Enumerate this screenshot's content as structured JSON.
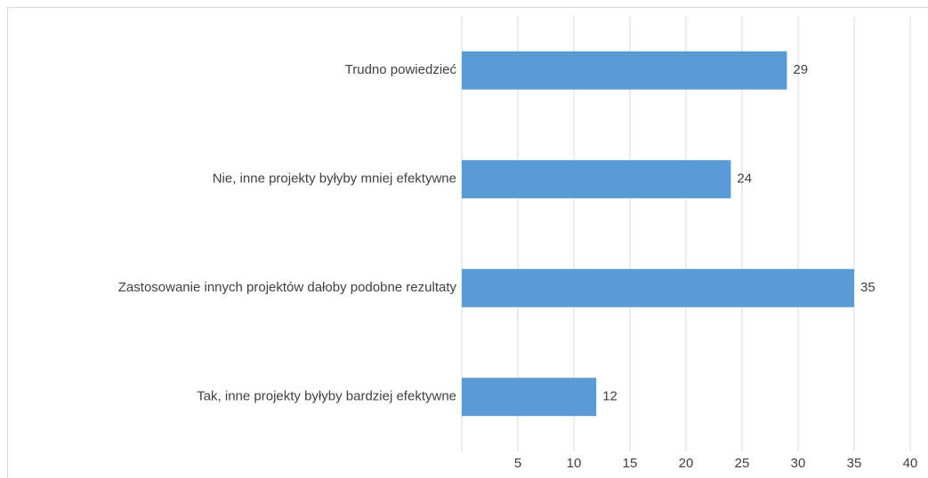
{
  "chart_data": {
    "type": "bar",
    "orientation": "horizontal",
    "categories": [
      "Trudno powiedzieć",
      "Nie, inne projekty byłyby mniej efektywne",
      "Zastosowanie innych projektów dałoby podobne rezultaty",
      "Tak, inne projekty byłyby bardziej efektywne"
    ],
    "values": [
      29,
      24,
      35,
      12
    ],
    "color": "#5b9bd5",
    "xlim": [
      0,
      40
    ],
    "xticks": [
      5,
      10,
      15,
      20,
      25,
      30,
      35,
      40
    ],
    "grid": true
  }
}
